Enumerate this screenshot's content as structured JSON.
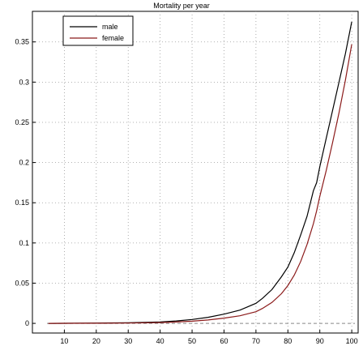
{
  "chart_data": {
    "type": "line",
    "title": "Mortality per year",
    "xlabel": "",
    "ylabel": "",
    "xlim": [
      0,
      102
    ],
    "ylim": [
      -0.012,
      0.388
    ],
    "x_ticks": [
      10,
      20,
      30,
      40,
      50,
      60,
      70,
      80,
      90,
      100
    ],
    "y_ticks": [
      0,
      0.05,
      0.1,
      0.15,
      0.2,
      0.25,
      0.3,
      0.35
    ],
    "y_tick_labels": [
      "0",
      "0.05",
      "0.1",
      "0.15",
      "0.2",
      "0.25",
      "0.3",
      "0.35"
    ],
    "grid": true,
    "legend_position": "top-left",
    "series": [
      {
        "name": "male",
        "color": "#000000",
        "x": [
          0,
          10,
          20,
          30,
          40,
          45,
          50,
          55,
          60,
          65,
          70,
          72,
          75,
          78,
          80,
          82,
          84,
          86,
          88,
          89,
          90,
          92,
          94,
          96,
          98,
          100
        ],
        "y": [
          0.0,
          0.0001,
          0.0004,
          0.0008,
          0.0018,
          0.003,
          0.0048,
          0.0075,
          0.0115,
          0.0165,
          0.025,
          0.031,
          0.042,
          0.058,
          0.07,
          0.088,
          0.11,
          0.133,
          0.165,
          0.175,
          0.195,
          0.23,
          0.265,
          0.3,
          0.335,
          0.375
        ]
      },
      {
        "name": "female",
        "color": "#8b1a1a",
        "x": [
          0,
          10,
          20,
          30,
          40,
          45,
          50,
          55,
          60,
          65,
          70,
          72,
          75,
          78,
          80,
          82,
          84,
          86,
          88,
          89,
          90,
          92,
          94,
          96,
          98,
          100
        ],
        "y": [
          0.0,
          0.0001,
          0.0002,
          0.0004,
          0.001,
          0.0017,
          0.0027,
          0.0042,
          0.0065,
          0.0095,
          0.0145,
          0.0185,
          0.026,
          0.037,
          0.047,
          0.06,
          0.077,
          0.098,
          0.124,
          0.14,
          0.158,
          0.19,
          0.225,
          0.262,
          0.302,
          0.347
        ]
      }
    ]
  }
}
